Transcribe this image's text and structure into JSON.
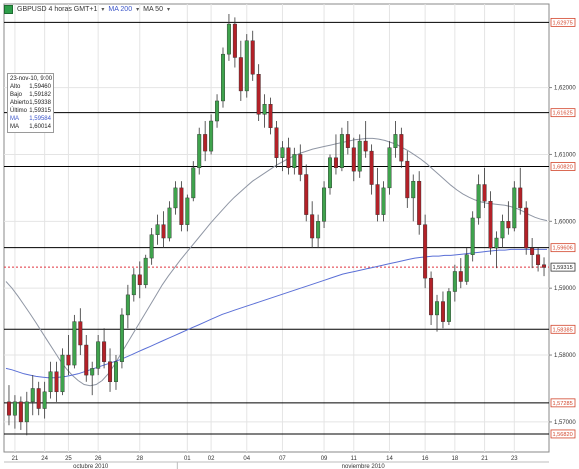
{
  "toolbar": {
    "symbol": "GBPUSD 4 horas GMT+1",
    "ma1_label": "MA 200",
    "ma2_label": "MA 50"
  },
  "info_box": {
    "timestamp": "23-nov-10, 9:00",
    "rows": [
      {
        "label": "Alto",
        "value": "1,59460"
      },
      {
        "label": "Bajo",
        "value": "1,59182"
      },
      {
        "label": "Abierto",
        "value": "1,59338"
      },
      {
        "label": "Último",
        "value": "1,59315"
      },
      {
        "label": "MA",
        "value": "1,59584"
      },
      {
        "label": "MA",
        "value": "1,60014"
      }
    ]
  },
  "colors": {
    "up": "#3fa34d",
    "down": "#b32128",
    "ma200": "#5a6fd6",
    "ma50": "#8f96a4",
    "level_line": "#000000",
    "level_label": "#d2452b",
    "last_price_line": "#e0323c",
    "grid": "#e4e4e4"
  },
  "chart_data": {
    "type": "candlestick",
    "ylim": [
      1.5655,
      1.6325
    ],
    "y_ticks": [
      "1,62000",
      "1,61000",
      "1,60000",
      "1,59000",
      "1,58000",
      "1,57000"
    ],
    "x_ticks": [
      "21",
      "24",
      "25",
      "26",
      "28",
      "01",
      "02",
      "04",
      "07",
      "09",
      "11",
      "14",
      "16",
      "18",
      "21",
      "23"
    ],
    "months": [
      "octubre 2010",
      "noviembre 2010"
    ],
    "levels": [
      {
        "value": 1.62975,
        "label": "1,62975"
      },
      {
        "value": 1.61625,
        "label": "1,61625"
      },
      {
        "value": 1.6082,
        "label": "1,60820"
      },
      {
        "value": 1.59606,
        "label": "1,59606"
      },
      {
        "value": 1.58385,
        "label": "1,58385"
      },
      {
        "value": 1.57285,
        "label": "1,57285"
      },
      {
        "value": 1.5682,
        "label": "1,56820"
      }
    ],
    "last_price": {
      "value": 1.59315,
      "label": "1,59315"
    },
    "candles": [
      [
        1.573,
        1.5755,
        1.5695,
        1.571
      ],
      [
        1.571,
        1.574,
        1.569,
        1.573
      ],
      [
        1.573,
        1.5738,
        1.5688,
        1.57
      ],
      [
        1.57,
        1.5745,
        1.568,
        1.573
      ],
      [
        1.573,
        1.577,
        1.571,
        1.575
      ],
      [
        1.575,
        1.576,
        1.571,
        1.572
      ],
      [
        1.572,
        1.576,
        1.5705,
        1.5745
      ],
      [
        1.5745,
        1.579,
        1.5735,
        1.5775
      ],
      [
        1.5775,
        1.579,
        1.573,
        1.5745
      ],
      [
        1.5745,
        1.581,
        1.574,
        1.58
      ],
      [
        1.58,
        1.583,
        1.577,
        1.5785
      ],
      [
        1.5785,
        1.586,
        1.578,
        1.585
      ],
      [
        1.585,
        1.587,
        1.58,
        1.5815
      ],
      [
        1.5815,
        1.583,
        1.576,
        1.577
      ],
      [
        1.577,
        1.579,
        1.574,
        1.578
      ],
      [
        1.578,
        1.583,
        1.577,
        1.582
      ],
      [
        1.582,
        1.584,
        1.578,
        1.579
      ],
      [
        1.579,
        1.581,
        1.5745,
        1.576
      ],
      [
        1.576,
        1.58,
        1.5748,
        1.579
      ],
      [
        1.579,
        1.587,
        1.578,
        1.586
      ],
      [
        1.586,
        1.5905,
        1.584,
        1.589
      ],
      [
        1.589,
        1.593,
        1.588,
        1.592
      ],
      [
        1.592,
        1.594,
        1.5885,
        1.5905
      ],
      [
        1.5905,
        1.595,
        1.59,
        1.5945
      ],
      [
        1.5945,
        1.599,
        1.5935,
        1.598
      ],
      [
        1.598,
        1.601,
        1.5965,
        1.5995
      ],
      [
        1.5995,
        1.6015,
        1.596,
        1.5975
      ],
      [
        1.5975,
        1.603,
        1.597,
        1.602
      ],
      [
        1.602,
        1.606,
        1.601,
        1.605
      ],
      [
        1.605,
        1.606,
        1.5985,
        1.5995
      ],
      [
        1.5995,
        1.604,
        1.5985,
        1.6035
      ],
      [
        1.6035,
        1.609,
        1.603,
        1.608
      ],
      [
        1.608,
        1.614,
        1.607,
        1.613
      ],
      [
        1.613,
        1.615,
        1.609,
        1.6105
      ],
      [
        1.6105,
        1.616,
        1.61,
        1.615
      ],
      [
        1.615,
        1.619,
        1.614,
        1.618
      ],
      [
        1.618,
        1.626,
        1.617,
        1.625
      ],
      [
        1.625,
        1.631,
        1.624,
        1.6295
      ],
      [
        1.6295,
        1.6305,
        1.623,
        1.6245
      ],
      [
        1.6245,
        1.627,
        1.618,
        1.6195
      ],
      [
        1.6195,
        1.628,
        1.6185,
        1.627
      ],
      [
        1.627,
        1.6285,
        1.621,
        1.622
      ],
      [
        1.622,
        1.6235,
        1.615,
        1.616
      ],
      [
        1.616,
        1.619,
        1.614,
        1.6175
      ],
      [
        1.6175,
        1.6185,
        1.613,
        1.614
      ],
      [
        1.614,
        1.615,
        1.608,
        1.6095
      ],
      [
        1.6095,
        1.612,
        1.6075,
        1.611
      ],
      [
        1.611,
        1.6125,
        1.607,
        1.608
      ],
      [
        1.608,
        1.611,
        1.607,
        1.61
      ],
      [
        1.61,
        1.6115,
        1.606,
        1.607
      ],
      [
        1.607,
        1.6085,
        1.6,
        1.601
      ],
      [
        1.601,
        1.603,
        1.596,
        1.5975
      ],
      [
        1.5975,
        1.601,
        1.596,
        1.6
      ],
      [
        1.6,
        1.606,
        1.599,
        1.605
      ],
      [
        1.605,
        1.61,
        1.604,
        1.6095
      ],
      [
        1.6095,
        1.613,
        1.607,
        1.608
      ],
      [
        1.608,
        1.614,
        1.6075,
        1.613
      ],
      [
        1.613,
        1.615,
        1.61,
        1.611
      ],
      [
        1.611,
        1.6125,
        1.606,
        1.6075
      ],
      [
        1.6075,
        1.613,
        1.6065,
        1.612
      ],
      [
        1.612,
        1.615,
        1.6095,
        1.6105
      ],
      [
        1.6105,
        1.6115,
        1.604,
        1.6055
      ],
      [
        1.6055,
        1.608,
        1.6,
        1.601
      ],
      [
        1.601,
        1.606,
        1.6,
        1.605
      ],
      [
        1.605,
        1.612,
        1.604,
        1.611
      ],
      [
        1.611,
        1.615,
        1.6095,
        1.613
      ],
      [
        1.613,
        1.614,
        1.608,
        1.609
      ],
      [
        1.609,
        1.6105,
        1.602,
        1.6035
      ],
      [
        1.6035,
        1.607,
        1.6,
        1.606
      ],
      [
        1.606,
        1.6075,
        1.598,
        1.5995
      ],
      [
        1.5995,
        1.601,
        1.59,
        1.5915
      ],
      [
        1.5915,
        1.5925,
        1.5845,
        1.586
      ],
      [
        1.586,
        1.589,
        1.5835,
        1.588
      ],
      [
        1.588,
        1.5895,
        1.584,
        1.585
      ],
      [
        1.585,
        1.59,
        1.5845,
        1.5895
      ],
      [
        1.5895,
        1.5935,
        1.588,
        1.5925
      ],
      [
        1.5925,
        1.5945,
        1.59,
        1.591
      ],
      [
        1.591,
        1.596,
        1.5905,
        1.595
      ],
      [
        1.595,
        1.6015,
        1.594,
        1.6005
      ],
      [
        1.6005,
        1.607,
        1.5995,
        1.6055
      ],
      [
        1.6055,
        1.608,
        1.602,
        1.603
      ],
      [
        1.603,
        1.6045,
        1.595,
        1.596
      ],
      [
        1.596,
        1.5985,
        1.593,
        1.5975
      ],
      [
        1.5975,
        1.601,
        1.596,
        1.6
      ],
      [
        1.6,
        1.603,
        1.598,
        1.599
      ],
      [
        1.599,
        1.606,
        1.5985,
        1.605
      ],
      [
        1.605,
        1.608,
        1.601,
        1.602
      ],
      [
        1.602,
        1.603,
        1.595,
        1.596
      ],
      [
        1.596,
        1.5975,
        1.593,
        1.595
      ],
      [
        1.595,
        1.596,
        1.5925,
        1.5935
      ],
      [
        1.5935,
        1.5946,
        1.5918,
        1.5931
      ]
    ],
    "ma200": [
      1.578,
      1.5778,
      1.5775,
      1.5772,
      1.577,
      1.5768,
      1.5767,
      1.5766,
      1.5766,
      1.5767,
      1.5768,
      1.577,
      1.5772,
      1.5775,
      1.5778,
      1.5781,
      1.5784,
      1.5787,
      1.579,
      1.5793,
      1.5797,
      1.5801,
      1.5805,
      1.5809,
      1.5813,
      1.5817,
      1.5821,
      1.5825,
      1.5829,
      1.5833,
      1.5837,
      1.5841,
      1.5845,
      1.5849,
      1.5853,
      1.5857,
      1.5861,
      1.5864,
      1.5867,
      1.587,
      1.5873,
      1.5876,
      1.5879,
      1.5882,
      1.5885,
      1.5888,
      1.5891,
      1.5894,
      1.5897,
      1.59,
      1.5903,
      1.5906,
      1.5909,
      1.5912,
      1.5915,
      1.5918,
      1.5921,
      1.5923,
      1.5925,
      1.5927,
      1.5929,
      1.5931,
      1.5933,
      1.5935,
      1.5937,
      1.5939,
      1.5941,
      1.5943,
      1.5945,
      1.5946,
      1.5947,
      1.5948,
      1.5948,
      1.5949,
      1.5949,
      1.595,
      1.5951,
      1.5952,
      1.5953,
      1.5954,
      1.5955,
      1.5956,
      1.5957,
      1.5957,
      1.5958,
      1.5958,
      1.5958,
      1.5958,
      1.5958,
      1.5958,
      1.5958
    ],
    "ma50": [
      1.591,
      1.59,
      1.5888,
      1.5875,
      1.5862,
      1.5848,
      1.5834,
      1.582,
      1.5806,
      1.5792,
      1.578,
      1.577,
      1.5762,
      1.5756,
      1.5754,
      1.5756,
      1.5762,
      1.5772,
      1.5785,
      1.58,
      1.5815,
      1.583,
      1.5845,
      1.586,
      1.5875,
      1.589,
      1.5905,
      1.5918,
      1.593,
      1.5942,
      1.5953,
      1.5964,
      1.5975,
      1.5986,
      1.5997,
      1.6007,
      1.6017,
      1.6027,
      1.6036,
      1.6044,
      1.6052,
      1.606,
      1.6066,
      1.6072,
      1.6078,
      1.6084,
      1.6089,
      1.6094,
      1.6098,
      1.6102,
      1.6105,
      1.6108,
      1.611,
      1.6112,
      1.6114,
      1.6116,
      1.6118,
      1.612,
      1.6122,
      1.6123,
      1.6124,
      1.6124,
      1.6123,
      1.6121,
      1.6118,
      1.6115,
      1.611,
      1.6105,
      1.6099,
      1.6093,
      1.6086,
      1.6078,
      1.607,
      1.6062,
      1.6054,
      1.6047,
      1.6041,
      1.6036,
      1.6032,
      1.6029,
      1.6027,
      1.6026,
      1.6025,
      1.6024,
      1.6022,
      1.6019,
      1.6015,
      1.601,
      1.6006,
      1.6003,
      1.6001
    ]
  }
}
